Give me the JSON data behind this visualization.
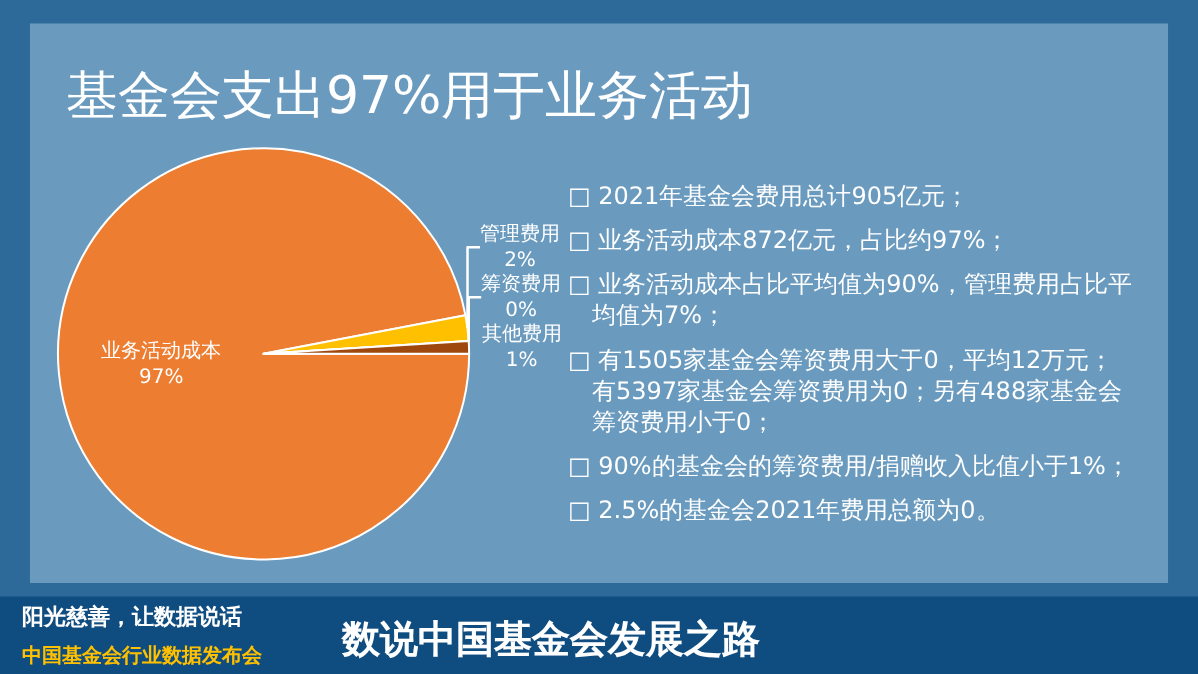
{
  "chart_data": {
    "type": "pie",
    "title": "基金会支出97%用于业务活动",
    "categories": [
      "业务活动成本",
      "管理费用",
      "筹资费用",
      "其他费用"
    ],
    "values": [
      97,
      2,
      0,
      1
    ],
    "value_labels": [
      "97%",
      "2%",
      "0%",
      "1%"
    ],
    "colors": [
      "#ed7d31",
      "#ffc000",
      "#a5a5a5",
      "#9e480e"
    ],
    "legend": false,
    "annotations": [
      "□ 2021年基金会费用总计905亿元；",
      "□ 业务活动成本872亿元，占比约97%；",
      "□ 业务活动成本占比平均值为90%，管理费用占比平均值为7%；",
      "□ 有1505家基金会筹资费用大于0，平均12万元；有5397家基金会筹资费用为0；另有488家基金会筹资费用小于0；",
      "□ 90%的基金会的筹资费用/捐赠收入比值小于1%；",
      "□ 2.5%的基金会2021年费用总额为0。",
      "阳光慈善，让数据说话",
      "中国基金会行业数据发布会",
      "数说中国基金会发展之路"
    ]
  }
}
